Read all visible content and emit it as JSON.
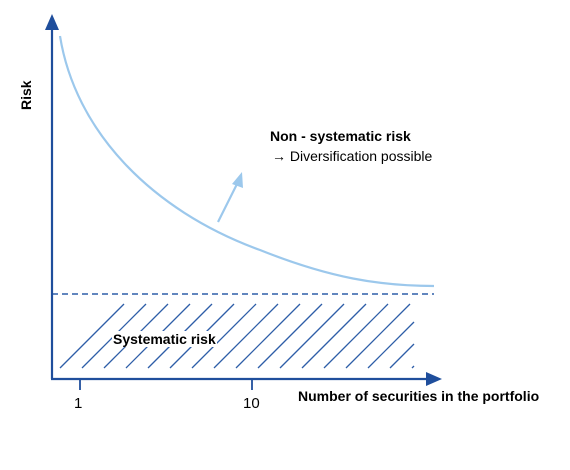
{
  "axes": {
    "y_label": "Risk",
    "x_label": "Number of securities in the portfolio",
    "x_ticks": [
      "1",
      "10"
    ]
  },
  "annotations": {
    "non_systematic_title": "Non - systematic risk",
    "non_systematic_sub": "→ Diversification possible",
    "systematic": "Systematic risk"
  },
  "colors": {
    "axis": "#1f4e9c",
    "curve": "#9cc8ec",
    "dashed_line": "#2e5ea8",
    "hatch": "#2e5ea8"
  }
}
